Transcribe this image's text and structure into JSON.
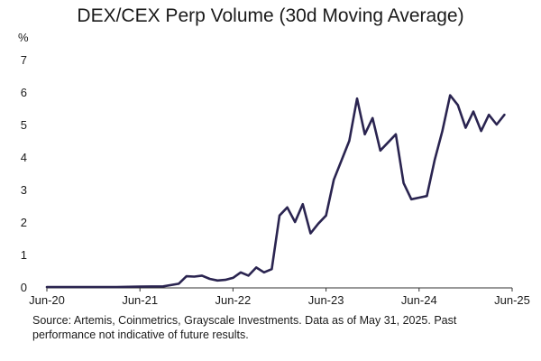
{
  "chart_data": {
    "type": "line",
    "title": "DEX/CEX Perp Volume (30d Moving Average)",
    "ylabel": "%",
    "xlabel": "",
    "ylim": [
      0,
      7
    ],
    "yticks": [
      "0",
      "1",
      "2",
      "3",
      "4",
      "5",
      "6",
      "7"
    ],
    "xlim": [
      "2020-06",
      "2025-06"
    ],
    "xticks": [
      "Jun-20",
      "Jun-21",
      "Jun-22",
      "Jun-23",
      "Jun-24",
      "Jun-25"
    ],
    "grid": false,
    "line_color": "#2a2450",
    "series": [
      {
        "x": [
          "2020-06",
          "2020-09",
          "2020-12",
          "2021-03",
          "2021-06",
          "2021-09",
          "2021-11",
          "2021-12",
          "2022-01",
          "2022-02",
          "2022-03",
          "2022-04",
          "2022-05",
          "2022-06",
          "2022-07",
          "2022-08",
          "2022-09",
          "2022-10",
          "2022-11",
          "2022-12",
          "2023-01",
          "2023-02",
          "2023-03",
          "2023-04",
          "2023-05",
          "2023-06",
          "2023-07",
          "2023-08",
          "2023-09",
          "2023-10",
          "2023-11",
          "2023-12",
          "2024-01",
          "2024-02",
          "2024-03",
          "2024-04",
          "2024-05",
          "2024-06",
          "2024-07",
          "2024-08",
          "2024-09",
          "2024-10",
          "2024-11",
          "2024-12",
          "2025-01",
          "2025-02",
          "2025-03",
          "2025-04",
          "2025-05"
        ],
        "values": [
          0,
          0,
          0,
          0,
          0.01,
          0.02,
          0.1,
          0.33,
          0.32,
          0.35,
          0.25,
          0.2,
          0.22,
          0.28,
          0.45,
          0.35,
          0.6,
          0.45,
          0.55,
          2.2,
          2.45,
          2.0,
          2.55,
          1.65,
          1.95,
          2.2,
          3.3,
          3.9,
          4.5,
          5.8,
          4.7,
          5.2,
          4.2,
          4.45,
          4.7,
          3.2,
          2.7,
          2.75,
          2.8,
          3.9,
          4.8,
          5.9,
          5.6,
          4.9,
          5.4,
          4.8,
          5.3,
          5.0,
          5.3
        ]
      }
    ]
  },
  "source_note": "Source: Artemis, Coinmetrics, Grayscale Investments. Data as of May 31, 2025. Past performance not indicative of future results."
}
